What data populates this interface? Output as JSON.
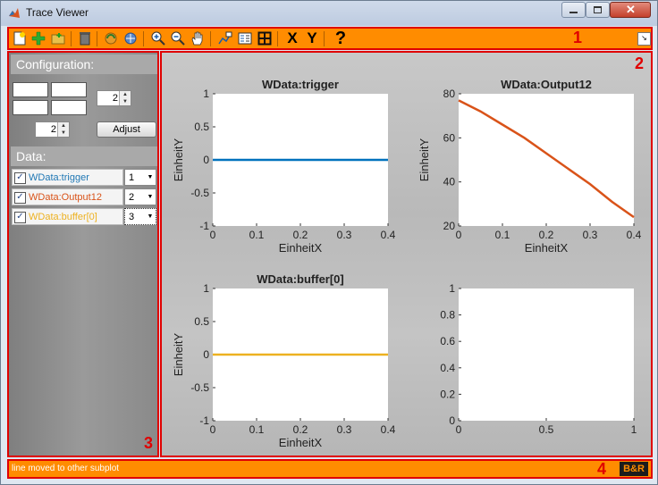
{
  "window": {
    "title": "Trace Viewer"
  },
  "toolbar": {
    "number_label": "1",
    "icons": [
      "new-icon",
      "add-icon",
      "open-folder-icon",
      "delete-icon",
      "refresh-icon",
      "export-icon",
      "zoom-in-icon",
      "zoom-out-icon",
      "pan-hand-icon",
      "data-cursor-icon",
      "legend-icon",
      "grid-icon",
      "x-label-icon",
      "y-label-icon",
      "help-icon"
    ],
    "x_text": "X",
    "y_text": "Y",
    "help_text": "?"
  },
  "left_panel": {
    "number_label": "3",
    "configuration_title": "Configuration:",
    "rows_value": "2",
    "cols_value": "2",
    "adjust_label": "Adjust",
    "data_title": "Data:",
    "signals": [
      {
        "name": "WData:trigger",
        "subplot": "1",
        "color": "#1f77b4",
        "checked": "✓"
      },
      {
        "name": "WData:Output12",
        "subplot": "2",
        "color": "#d95319",
        "checked": "✓"
      },
      {
        "name": "WData:buffer[0]",
        "subplot": "3",
        "color": "#edb120",
        "checked": "✓"
      }
    ]
  },
  "plot_panel": {
    "number_label": "2"
  },
  "status_bar": {
    "number_label": "4",
    "message": "line moved to other subplot",
    "logo_text": "B&R"
  },
  "chart_data": [
    {
      "type": "line",
      "title": "WData:trigger",
      "xlabel": "EinheitX",
      "ylabel": "EinheitY",
      "xlim": [
        0,
        0.4
      ],
      "ylim": [
        -1,
        1
      ],
      "xticks": [
        "0",
        "0.1",
        "0.2",
        "0.3",
        "0.4"
      ],
      "yticks": [
        "-1",
        "-0.5",
        "0",
        "0.5",
        "1"
      ],
      "series": [
        {
          "color": "#0072bd",
          "x": [
            0,
            0.4
          ],
          "y": [
            0,
            0
          ]
        }
      ]
    },
    {
      "type": "line",
      "title": "WData:Output12",
      "xlabel": "EinheitX",
      "ylabel": "EinheitY",
      "xlim": [
        0,
        0.4
      ],
      "ylim": [
        20,
        80
      ],
      "xticks": [
        "0",
        "0.1",
        "0.2",
        "0.3",
        "0.4"
      ],
      "yticks": [
        "20",
        "40",
        "60",
        "80"
      ],
      "series": [
        {
          "color": "#d95319",
          "x": [
            0,
            0.05,
            0.1,
            0.15,
            0.2,
            0.25,
            0.3,
            0.35,
            0.4
          ],
          "y": [
            77,
            72,
            66,
            60,
            53,
            46,
            39,
            31,
            24
          ]
        }
      ]
    },
    {
      "type": "line",
      "title": "WData:buffer[0]",
      "xlabel": "EinheitX",
      "ylabel": "EinheitY",
      "xlim": [
        0,
        0.4
      ],
      "ylim": [
        -1,
        1
      ],
      "xticks": [
        "0",
        "0.1",
        "0.2",
        "0.3",
        "0.4"
      ],
      "yticks": [
        "-1",
        "-0.5",
        "0",
        "0.5",
        "1"
      ],
      "series": [
        {
          "color": "#edb120",
          "x": [
            0,
            0.4
          ],
          "y": [
            0,
            0
          ]
        }
      ]
    },
    {
      "type": "line",
      "title": "",
      "xlabel": "",
      "ylabel": "",
      "xlim": [
        0,
        1
      ],
      "ylim": [
        0,
        1
      ],
      "xticks": [
        "0",
        "0.5",
        "1"
      ],
      "yticks": [
        "0",
        "0.2",
        "0.4",
        "0.6",
        "0.8",
        "1"
      ],
      "series": []
    }
  ]
}
